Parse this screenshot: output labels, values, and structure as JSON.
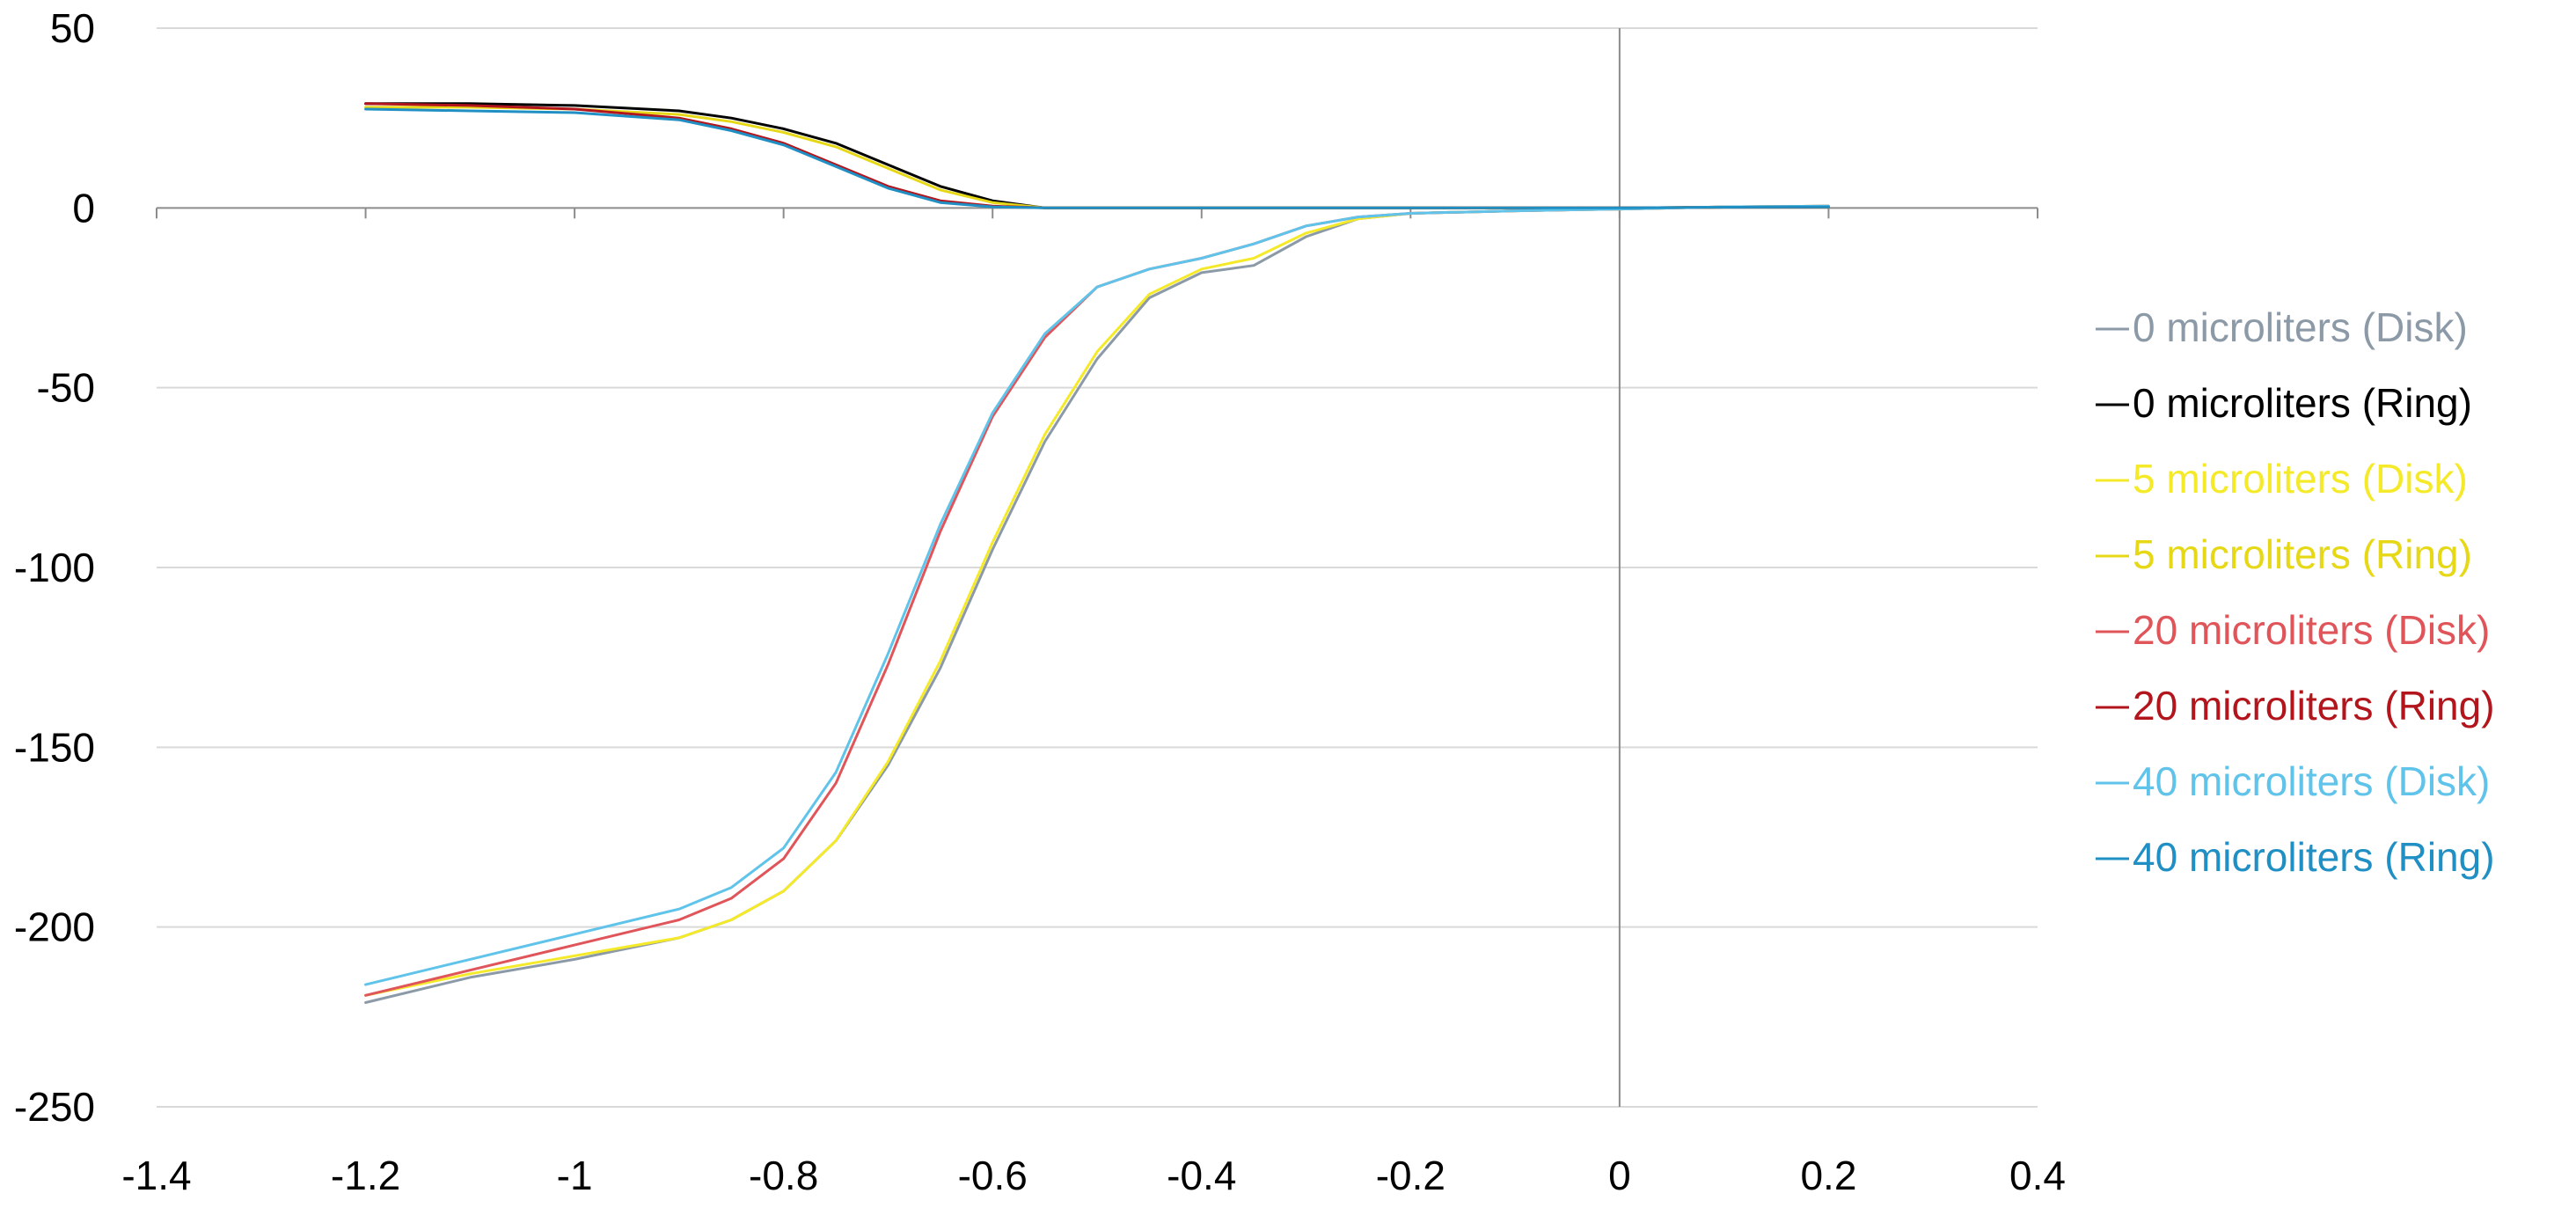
{
  "chart_data": {
    "type": "line",
    "title": "",
    "xlabel": "",
    "ylabel": "",
    "xlim": [
      -1.4,
      0.4
    ],
    "ylim": [
      -250,
      50
    ],
    "x_ticks": [
      -1.4,
      -1.2,
      -1,
      -0.8,
      -0.6,
      -0.4,
      -0.2,
      0,
      0.2,
      0.4
    ],
    "x_tick_labels": [
      "-1.4",
      "-1.2",
      "-1",
      "-0.8",
      "-0.6",
      "-0.4",
      "-0.2",
      "0",
      "0.2",
      "0.4"
    ],
    "y_ticks": [
      50,
      0,
      -50,
      -100,
      -150,
      -200,
      -250
    ],
    "y_tick_labels": [
      "50",
      "0",
      "-50",
      "-100",
      "-150",
      "-200",
      "-250"
    ],
    "grid": "horizontal",
    "legend_position": "right",
    "series": [
      {
        "name": "0 microliters (Disk)",
        "color": "#8c9aa8",
        "x": [
          -1.2,
          -1.1,
          -1.0,
          -0.9,
          -0.85,
          -0.8,
          -0.75,
          -0.7,
          -0.65,
          -0.6,
          -0.55,
          -0.5,
          -0.45,
          -0.4,
          -0.35,
          -0.3,
          -0.25,
          -0.2,
          -0.1,
          0,
          0.1,
          0.2
        ],
        "y": [
          -221,
          -214,
          -209,
          -203,
          -198,
          -190,
          -176,
          -155,
          -128,
          -95,
          -65,
          -42,
          -25,
          -18,
          -16,
          -8,
          -3,
          -1.5,
          -0.8,
          -0.3,
          0.3,
          0.5
        ]
      },
      {
        "name": "0 microliters (Ring)",
        "color": "#000000",
        "x": [
          -1.2,
          -1.1,
          -1.0,
          -0.9,
          -0.85,
          -0.8,
          -0.75,
          -0.7,
          -0.65,
          -0.6,
          -0.55,
          -0.5,
          -0.45,
          -0.4,
          -0.3,
          -0.2,
          -0.1,
          0,
          0.1,
          0.2
        ],
        "y": [
          29,
          29,
          28.5,
          27,
          25,
          22,
          18,
          12,
          6,
          2,
          0,
          0,
          0,
          0,
          0,
          0,
          0,
          0,
          0.2,
          0.3
        ]
      },
      {
        "name": "5 microliters (Disk)",
        "color": "#f5ea2a",
        "x": [
          -1.2,
          -1.1,
          -1.0,
          -0.9,
          -0.85,
          -0.8,
          -0.75,
          -0.7,
          -0.65,
          -0.6,
          -0.55,
          -0.5,
          -0.45,
          -0.4,
          -0.35,
          -0.3,
          -0.25,
          -0.2,
          -0.1,
          0,
          0.1,
          0.2
        ],
        "y": [
          -219,
          -213,
          -208,
          -203,
          -198,
          -190,
          -176,
          -154,
          -126,
          -93,
          -63,
          -40,
          -24,
          -17,
          -14,
          -7,
          -3,
          -1.5,
          -0.8,
          -0.3,
          0.3,
          0.5
        ]
      },
      {
        "name": "5 microliters (Ring)",
        "color": "#e6d817",
        "x": [
          -1.2,
          -1.1,
          -1.0,
          -0.9,
          -0.85,
          -0.8,
          -0.75,
          -0.7,
          -0.65,
          -0.6,
          -0.55,
          -0.5,
          -0.45,
          -0.4,
          -0.3,
          -0.2,
          -0.1,
          0,
          0.1,
          0.2
        ],
        "y": [
          28,
          28,
          27.5,
          26,
          24,
          21,
          17,
          11,
          5,
          1.5,
          0,
          0,
          0,
          0,
          0,
          0,
          0,
          0,
          0.2,
          0.3
        ]
      },
      {
        "name": "20 microliters (Disk)",
        "color": "#e0555a",
        "x": [
          -1.2,
          -1.1,
          -1.0,
          -0.9,
          -0.85,
          -0.8,
          -0.75,
          -0.7,
          -0.65,
          -0.6,
          -0.55,
          -0.5,
          -0.45,
          -0.4,
          -0.35,
          -0.3,
          -0.25,
          -0.2,
          -0.1,
          0,
          0.1,
          0.2
        ],
        "y": [
          -219,
          -212,
          -205,
          -198,
          -192,
          -181,
          -160,
          -127,
          -90,
          -58,
          -36,
          -22,
          -17,
          -14,
          -10,
          -5,
          -2.5,
          -1.5,
          -0.8,
          -0.3,
          0.3,
          0.5
        ]
      },
      {
        "name": "20 microliters (Ring)",
        "color": "#b3151c",
        "x": [
          -1.2,
          -1.1,
          -1.0,
          -0.9,
          -0.85,
          -0.8,
          -0.75,
          -0.7,
          -0.65,
          -0.6,
          -0.55,
          -0.5,
          -0.45,
          -0.4,
          -0.3,
          -0.2,
          -0.1,
          0,
          0.1,
          0.2
        ],
        "y": [
          29,
          28.5,
          27.5,
          25,
          22,
          18,
          12,
          6,
          2,
          0.5,
          0,
          0,
          0,
          0,
          0,
          0,
          0,
          0,
          0.2,
          0.3
        ]
      },
      {
        "name": "40 microliters (Disk)",
        "color": "#5fc3ea",
        "x": [
          -1.2,
          -1.1,
          -1.0,
          -0.9,
          -0.85,
          -0.8,
          -0.75,
          -0.7,
          -0.65,
          -0.6,
          -0.55,
          -0.5,
          -0.45,
          -0.4,
          -0.35,
          -0.3,
          -0.25,
          -0.2,
          -0.1,
          0,
          0.1,
          0.2
        ],
        "y": [
          -216,
          -209,
          -202,
          -195,
          -189,
          -178,
          -157,
          -124,
          -88,
          -57,
          -35,
          -22,
          -17,
          -14,
          -10,
          -5,
          -2.5,
          -1.5,
          -0.8,
          -0.3,
          0.3,
          0.5
        ]
      },
      {
        "name": "40 microliters (Ring)",
        "color": "#1f8fc4",
        "x": [
          -1.2,
          -1.1,
          -1.0,
          -0.9,
          -0.85,
          -0.8,
          -0.75,
          -0.7,
          -0.65,
          -0.6,
          -0.55,
          -0.5,
          -0.45,
          -0.4,
          -0.3,
          -0.2,
          -0.1,
          0,
          0.1,
          0.2
        ],
        "y": [
          27.5,
          27,
          26.5,
          24.5,
          21.5,
          17.5,
          11.5,
          5.5,
          1.5,
          0.3,
          0,
          0,
          0,
          0,
          0,
          0,
          0,
          0,
          0.2,
          0.3
        ]
      }
    ]
  }
}
